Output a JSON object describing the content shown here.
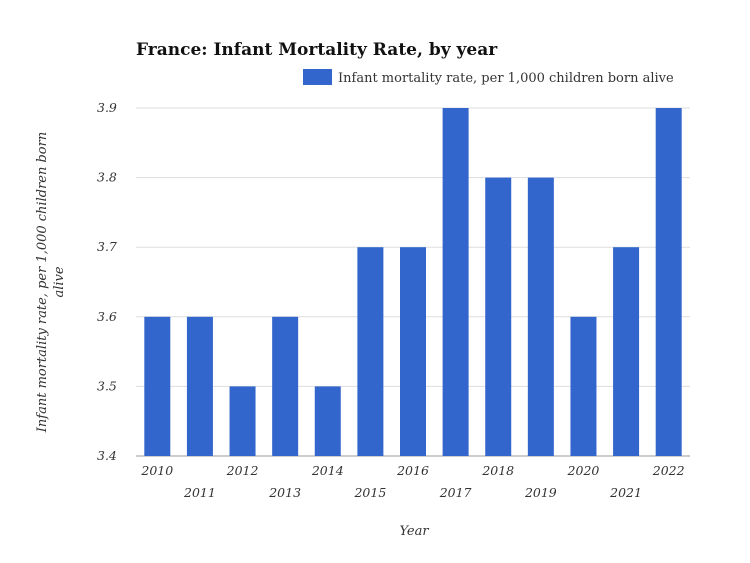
{
  "chart_data": {
    "type": "bar",
    "title": "France: Infant Mortality Rate, by year",
    "xlabel": "Year",
    "ylabel_lines": [
      "Infant mortality rate, per 1,000 children born",
      "alive"
    ],
    "categories": [
      "2010",
      "2011",
      "2012",
      "2013",
      "2014",
      "2015",
      "2016",
      "2017",
      "2018",
      "2019",
      "2020",
      "2021",
      "2022"
    ],
    "series": [
      {
        "name": "Infant mortality rate, per 1,000 children born alive",
        "values": [
          3.6,
          3.6,
          3.5,
          3.6,
          3.5,
          3.7,
          3.7,
          3.9,
          3.8,
          3.8,
          3.6,
          3.7,
          3.9
        ],
        "color": "#3366cc"
      }
    ],
    "ylim": [
      3.4,
      3.9
    ],
    "yticks": [
      "3.4",
      "3.5",
      "3.6",
      "3.7",
      "3.8",
      "3.9"
    ],
    "grid": true,
    "legend_position": "top-right"
  }
}
